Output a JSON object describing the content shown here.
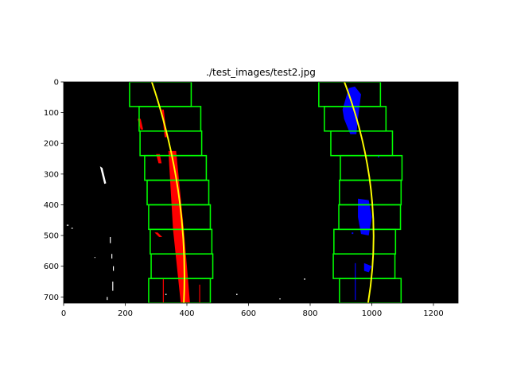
{
  "chart_data": {
    "type": "image",
    "title": "./test_images/test2.jpg",
    "xlim": [
      0,
      1280
    ],
    "ylim": [
      720,
      0
    ],
    "xticks": [
      0,
      200,
      400,
      600,
      800,
      1000,
      1200
    ],
    "yticks": [
      0,
      100,
      200,
      300,
      400,
      500,
      600,
      700
    ]
  }
}
